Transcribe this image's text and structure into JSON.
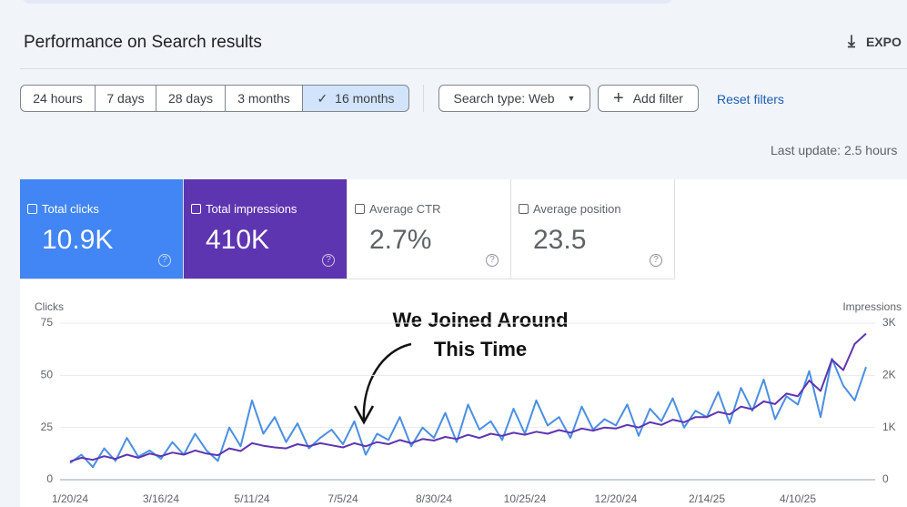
{
  "header": {
    "title": "Performance on Search results",
    "export": "EXPO"
  },
  "ranges": [
    "24 hours",
    "7 days",
    "28 days",
    "3 months",
    "16 months"
  ],
  "search_type": "Search type: Web",
  "add_filter": "Add filter",
  "reset_filters": "Reset filters",
  "last_update": "Last update: 2.5 hours",
  "metrics": [
    {
      "label": "Total clicks",
      "value": "10.9K"
    },
    {
      "label": "Total impressions",
      "value": "410K"
    },
    {
      "label": "Average CTR",
      "value": "2.7%"
    },
    {
      "label": "Average position",
      "value": "23.5"
    }
  ],
  "chart_data": {
    "type": "line",
    "y_label": "Clicks",
    "y2_label": "Impressions",
    "annotation": [
      "We Joined Around",
      "This Time"
    ],
    "categories": [
      "1/20/24",
      null,
      null,
      null,
      null,
      null,
      null,
      null,
      "3/16/24",
      null,
      null,
      null,
      null,
      null,
      null,
      null,
      "5/11/24",
      null,
      null,
      null,
      null,
      null,
      null,
      null,
      "7/5/24",
      null,
      null,
      null,
      null,
      null,
      null,
      null,
      "8/30/24",
      null,
      null,
      null,
      null,
      null,
      null,
      null,
      "10/25/24",
      null,
      null,
      null,
      null,
      null,
      null,
      null,
      "12/20/24",
      null,
      null,
      null,
      null,
      null,
      null,
      null,
      "2/14/25",
      null,
      null,
      null,
      null,
      null,
      null,
      null,
      "4/10/25",
      null,
      null,
      null,
      null,
      null,
      null
    ],
    "series": [
      {
        "name": "Clicks",
        "color": "#4a8fe3",
        "values": [
          8,
          12,
          6,
          15,
          9,
          20,
          11,
          14,
          10,
          18,
          12,
          22,
          14,
          9,
          25,
          16,
          38,
          22,
          30,
          18,
          27,
          15,
          20,
          24,
          17,
          28,
          12,
          22,
          19,
          30,
          16,
          25,
          20,
          32,
          18,
          36,
          24,
          28,
          19,
          34,
          22,
          38,
          26,
          30,
          20,
          35,
          24,
          29,
          26,
          36,
          21,
          34,
          28,
          39,
          25,
          33,
          30,
          42,
          27,
          44,
          33,
          48,
          29,
          40,
          36,
          52,
          30,
          58,
          45,
          38,
          54
        ]
      },
      {
        "name": "Impressions",
        "color": "#5e35b1",
        "axis": "y2",
        "values": [
          350,
          420,
          380,
          450,
          400,
          480,
          420,
          500,
          450,
          520,
          480,
          560,
          500,
          470,
          600,
          550,
          700,
          650,
          620,
          600,
          680,
          640,
          700,
          660,
          620,
          700,
          640,
          720,
          680,
          760,
          700,
          780,
          750,
          820,
          780,
          860,
          800,
          880,
          840,
          900,
          860,
          920,
          880,
          950,
          900,
          980,
          940,
          1000,
          980,
          1050,
          1000,
          1100,
          1050,
          1150,
          1100,
          1200,
          1200,
          1300,
          1250,
          1400,
          1350,
          1500,
          1450,
          1650,
          1600,
          1900,
          1700,
          2300,
          2100,
          2600,
          2800
        ]
      }
    ],
    "ylim": [
      0,
      75
    ],
    "yticks": [
      0,
      25,
      50,
      75
    ],
    "y2lim": [
      0,
      3000
    ],
    "y2ticks": [
      0,
      {
        "value": 1000,
        "label": "1K"
      },
      {
        "value": 2000,
        "label": "2K"
      },
      {
        "value": 3000,
        "label": "3K"
      }
    ],
    "grid": true
  }
}
